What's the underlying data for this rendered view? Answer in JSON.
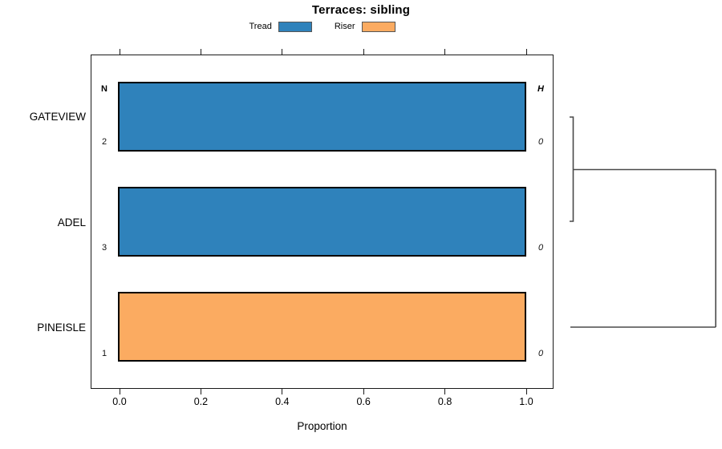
{
  "title": "Terraces: sibling",
  "chart_data": {
    "type": "bar",
    "orientation": "horizontal",
    "title": "Terraces: sibling",
    "xlabel": "Proportion",
    "xlim": [
      0,
      1.05
    ],
    "xticks": [
      0,
      0.2,
      0.4,
      0.6,
      0.8,
      1.0
    ],
    "xtick_labels": [
      "0.0",
      "0.2",
      "0.4",
      "0.6",
      "0.8",
      "1.0"
    ],
    "grid": false,
    "legend_position": "top",
    "legend": [
      {
        "label": "Tread",
        "color": "#2f82bb"
      },
      {
        "label": "Riser",
        "color": "#fbab61"
      }
    ],
    "col_headers": [
      "N",
      "H"
    ],
    "categories": [
      "GATEVIEW",
      "ADEL",
      "PINEISLE"
    ],
    "rows": [
      {
        "category": "GATEVIEW",
        "segment": "Tread",
        "proportion": 1.0,
        "N": 2,
        "H": 0
      },
      {
        "category": "ADEL",
        "segment": "Tread",
        "proportion": 1.0,
        "N": 3,
        "H": 0
      },
      {
        "category": "PINEISLE",
        "segment": "Riser",
        "proportion": 1.0,
        "N": 1,
        "H": 0
      }
    ],
    "segment_colors": {
      "Tread": "#2f82bb",
      "Riser": "#fbab61"
    },
    "dendrogram": {
      "leaves": [
        "GATEVIEW",
        "ADEL",
        "PINEISLE"
      ],
      "merges": [
        {
          "members": [
            "GATEVIEW",
            "ADEL"
          ],
          "height": 0
        },
        {
          "members": [
            "GATEVIEW+ADEL",
            "PINEISLE"
          ],
          "height": "max"
        }
      ]
    }
  }
}
